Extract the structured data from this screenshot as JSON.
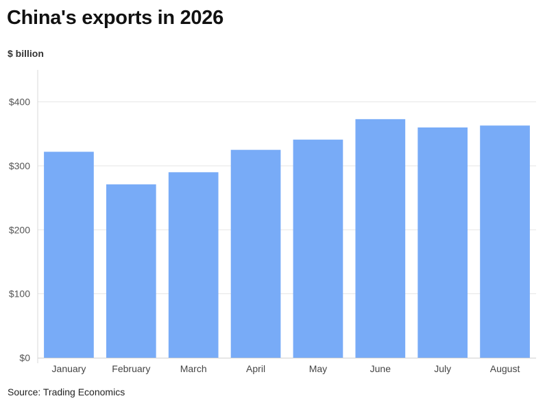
{
  "chart_data": {
    "type": "bar",
    "title": "China's exports in 2026",
    "ylabel": "$ billion",
    "xlabel": "",
    "categories": [
      "January",
      "February",
      "March",
      "April",
      "May",
      "June",
      "July",
      "August"
    ],
    "values": [
      322,
      271,
      290,
      325,
      341,
      373,
      360,
      363
    ],
    "ylim": [
      0,
      450
    ],
    "yticks": [
      0,
      100,
      200,
      300,
      400
    ],
    "ytick_labels": [
      "$0",
      "$100",
      "$200",
      "$300",
      "$400"
    ],
    "grid": true,
    "bar_color": "#78abf7",
    "source": "Source: Trading Economics"
  }
}
